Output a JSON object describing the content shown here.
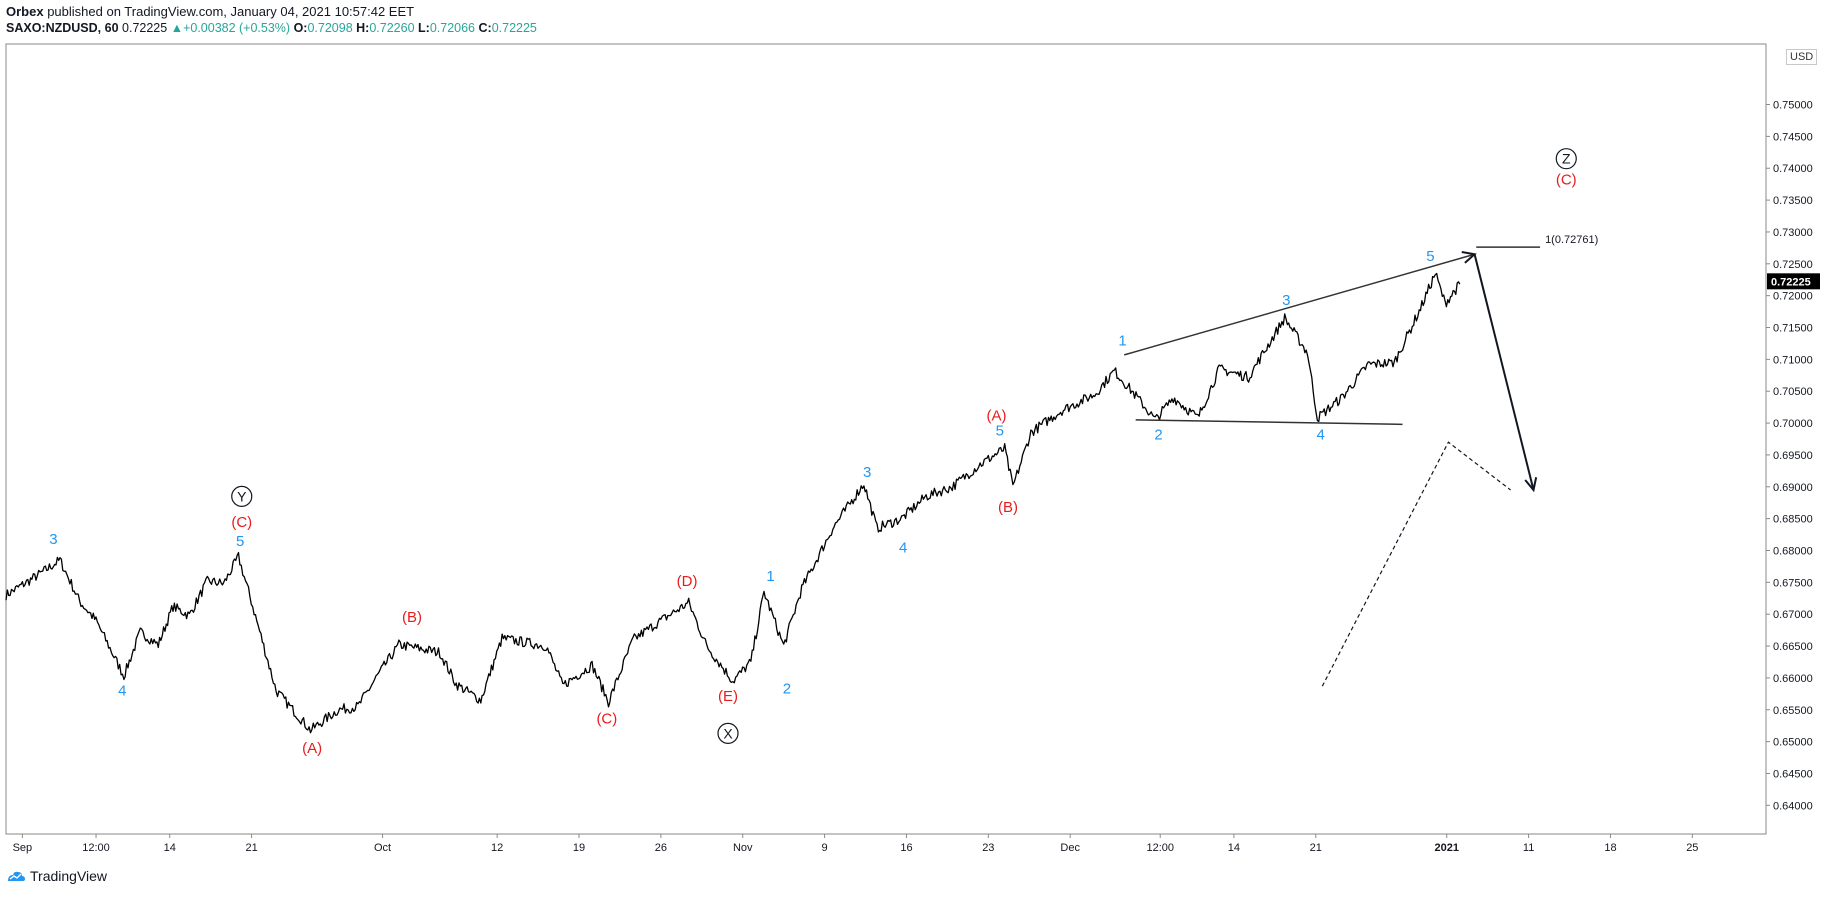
{
  "header": {
    "publisher": "Orbex",
    "published_text": " published on TradingView.com, January 04, 2021 10:57:42 EET",
    "symbol": "SAXO:NZDUSD, 60",
    "last": "0.72225",
    "change": "+0.00382 (+0.53%)",
    "o_label": "O:",
    "o": "0.72098",
    "h_label": "H:",
    "h": "0.72260",
    "l_label": "L:",
    "l": "0.72066",
    "c_label": "C:",
    "c": "0.72225"
  },
  "footer": {
    "brand": "TradingView"
  },
  "price_axis": {
    "currency": "USD",
    "current_label": "0.72225",
    "current_value": 0.72225
  },
  "colors": {
    "blue": "#2196f3",
    "red": "#e81c1c",
    "black": "#131722",
    "up": "#26a69a"
  },
  "chart_data": {
    "type": "line",
    "title": "",
    "ylim": [
      0.6355,
      0.7595
    ],
    "y_ticks": [
      0.64,
      0.645,
      0.65,
      0.655,
      0.66,
      0.665,
      0.67,
      0.675,
      0.68,
      0.685,
      0.69,
      0.695,
      0.7,
      0.705,
      0.71,
      0.715,
      0.72,
      0.725,
      0.73,
      0.735,
      0.74,
      0.745,
      0.75
    ],
    "y_tick_labels": [
      "0.64000",
      "0.64500",
      "0.65000",
      "0.65500",
      "0.66000",
      "0.66500",
      "0.67000",
      "0.67500",
      "0.68000",
      "0.68500",
      "0.69000",
      "0.69500",
      "0.70000",
      "0.70500",
      "0.71000",
      "0.71500",
      "0.72000",
      "0.72500",
      "0.73000",
      "0.73500",
      "0.74000",
      "0.74500",
      "0.75000"
    ],
    "x_ticks": [
      {
        "day": 0,
        "label": "Sep",
        "bold": false
      },
      {
        "day": 4.5,
        "label": "12:00",
        "bold": false
      },
      {
        "day": 9,
        "label": "14",
        "bold": false
      },
      {
        "day": 14,
        "label": "21",
        "bold": false
      },
      {
        "day": 22,
        "label": "Oct",
        "bold": false
      },
      {
        "day": 29,
        "label": "12",
        "bold": false
      },
      {
        "day": 34,
        "label": "19",
        "bold": false
      },
      {
        "day": 39,
        "label": "26",
        "bold": false
      },
      {
        "day": 44,
        "label": "Nov",
        "bold": false
      },
      {
        "day": 49,
        "label": "9",
        "bold": false
      },
      {
        "day": 54,
        "label": "16",
        "bold": false
      },
      {
        "day": 59,
        "label": "23",
        "bold": false
      },
      {
        "day": 64,
        "label": "Dec",
        "bold": false
      },
      {
        "day": 69.5,
        "label": "12:00",
        "bold": false
      },
      {
        "day": 74,
        "label": "14",
        "bold": false
      },
      {
        "day": 79,
        "label": "21",
        "bold": false
      },
      {
        "day": 87,
        "label": "2021",
        "bold": true
      },
      {
        "day": 92,
        "label": "11",
        "bold": false
      },
      {
        "day": 97,
        "label": "18",
        "bold": false
      },
      {
        "day": 102,
        "label": "25",
        "bold": false
      }
    ],
    "x_range": [
      -1,
      106.5
    ],
    "price_path": [
      [
        -1,
        0.673
      ],
      [
        1,
        0.6762
      ],
      [
        2.3,
        0.6785
      ],
      [
        3.5,
        0.672
      ],
      [
        4.5,
        0.669
      ],
      [
        6.2,
        0.6603
      ],
      [
        7.2,
        0.6672
      ],
      [
        8.3,
        0.6652
      ],
      [
        9.2,
        0.6712
      ],
      [
        10.2,
        0.6698
      ],
      [
        11.3,
        0.6752
      ],
      [
        12.3,
        0.6748
      ],
      [
        13.2,
        0.679
      ],
      [
        13.9,
        0.6728
      ],
      [
        15.5,
        0.658
      ],
      [
        17.6,
        0.6518
      ],
      [
        19.3,
        0.655
      ],
      [
        20.5,
        0.6555
      ],
      [
        21.6,
        0.66
      ],
      [
        23,
        0.6652
      ],
      [
        25.5,
        0.664
      ],
      [
        26.5,
        0.659
      ],
      [
        28,
        0.6565
      ],
      [
        29.3,
        0.6662
      ],
      [
        32,
        0.665
      ],
      [
        33,
        0.6588
      ],
      [
        34.8,
        0.662
      ],
      [
        35.8,
        0.6562
      ],
      [
        37.3,
        0.666
      ],
      [
        39,
        0.669
      ],
      [
        40.7,
        0.6718
      ],
      [
        41.8,
        0.665
      ],
      [
        43.4,
        0.6595
      ],
      [
        44.5,
        0.6625
      ],
      [
        45.3,
        0.6735
      ],
      [
        46.5,
        0.665
      ],
      [
        47.6,
        0.674
      ],
      [
        49.5,
        0.6835
      ],
      [
        51.4,
        0.6905
      ],
      [
        52.2,
        0.6835
      ],
      [
        53.7,
        0.685
      ],
      [
        55.2,
        0.6885
      ],
      [
        56.8,
        0.69
      ],
      [
        58.5,
        0.6935
      ],
      [
        60,
        0.696
      ],
      [
        60.5,
        0.69
      ],
      [
        61.6,
        0.6985
      ],
      [
        63.5,
        0.702
      ],
      [
        65.5,
        0.7045
      ],
      [
        66.7,
        0.7082
      ],
      [
        68.1,
        0.704
      ],
      [
        69.2,
        0.7005
      ],
      [
        70.3,
        0.704
      ],
      [
        71.8,
        0.7008
      ],
      [
        73.1,
        0.7085
      ],
      [
        74.9,
        0.7072
      ],
      [
        77.1,
        0.7165
      ],
      [
        78.5,
        0.711
      ],
      [
        79.1,
        0.7008
      ],
      [
        80.6,
        0.704
      ],
      [
        82.2,
        0.7092
      ],
      [
        83.8,
        0.7095
      ],
      [
        85.4,
        0.718
      ],
      [
        86.3,
        0.7235
      ],
      [
        86.9,
        0.7188
      ],
      [
        87.8,
        0.7218
      ]
    ],
    "wedge_upper": [
      [
        67.3,
        0.7107
      ],
      [
        88.7,
        0.7265
      ]
    ],
    "wedge_lower": [
      [
        68,
        0.7005
      ],
      [
        84.3,
        0.6998
      ]
    ],
    "target_line": {
      "x": [
        88.8,
        92.7
      ],
      "y": 0.72761,
      "label": "1(0.72761)"
    },
    "projection_arrow": [
      [
        88.7,
        0.7265
      ],
      [
        92.3,
        0.6895
      ]
    ],
    "dashed_path": [
      [
        79.4,
        0.6587
      ],
      [
        87.1,
        0.697
      ],
      [
        90.9,
        0.6895
      ]
    ],
    "wave_labels": [
      {
        "text": "3",
        "day": 1.9,
        "y": 0.6818,
        "color": "blue"
      },
      {
        "text": "4",
        "day": 6.1,
        "y": 0.658,
        "color": "blue"
      },
      {
        "text": "5",
        "day": 13.3,
        "y": 0.6815,
        "color": "blue"
      },
      {
        "text": "(C)",
        "day": 13.4,
        "y": 0.6845,
        "color": "red"
      },
      {
        "text": "(A)",
        "day": 17.7,
        "y": 0.649,
        "color": "red"
      },
      {
        "text": "(B)",
        "day": 23.8,
        "y": 0.6696,
        "color": "red"
      },
      {
        "text": "(C)",
        "day": 35.7,
        "y": 0.6536,
        "color": "red"
      },
      {
        "text": "(D)",
        "day": 40.6,
        "y": 0.6752,
        "color": "red"
      },
      {
        "text": "(E)",
        "day": 43.1,
        "y": 0.6572,
        "color": "red"
      },
      {
        "text": "1",
        "day": 45.7,
        "y": 0.676,
        "color": "blue"
      },
      {
        "text": "2",
        "day": 46.7,
        "y": 0.6583,
        "color": "blue"
      },
      {
        "text": "3",
        "day": 51.6,
        "y": 0.6923,
        "color": "blue"
      },
      {
        "text": "4",
        "day": 53.8,
        "y": 0.6805,
        "color": "blue"
      },
      {
        "text": "(A)",
        "day": 59.5,
        "y": 0.7012,
        "color": "red"
      },
      {
        "text": "5",
        "day": 59.7,
        "y": 0.6988,
        "color": "blue"
      },
      {
        "text": "(B)",
        "day": 60.2,
        "y": 0.6868,
        "color": "red"
      },
      {
        "text": "1",
        "day": 67.2,
        "y": 0.713,
        "color": "blue"
      },
      {
        "text": "2",
        "day": 69.4,
        "y": 0.6982,
        "color": "blue"
      },
      {
        "text": "3",
        "day": 77.2,
        "y": 0.7193,
        "color": "blue"
      },
      {
        "text": "4",
        "day": 79.3,
        "y": 0.6982,
        "color": "blue"
      },
      {
        "text": "5",
        "day": 86,
        "y": 0.7262,
        "color": "blue"
      },
      {
        "text": "(C)",
        "day": 94.3,
        "y": 0.7382,
        "color": "red"
      }
    ],
    "circled_labels": [
      {
        "text": "Y",
        "day": 13.4,
        "y": 0.6885
      },
      {
        "text": "X",
        "day": 43.1,
        "y": 0.6513
      },
      {
        "text": "Z",
        "day": 94.3,
        "y": 0.7415
      }
    ]
  }
}
